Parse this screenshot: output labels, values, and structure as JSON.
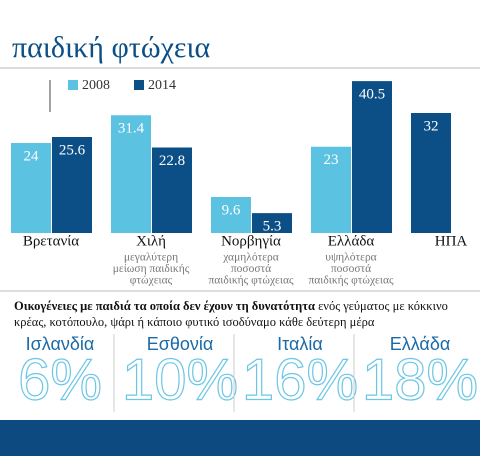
{
  "title": "παιδική φτώχεια",
  "chart_data": {
    "type": "bar",
    "categories": [
      "Βρετανία",
      "Χιλή",
      "Νορβηγία",
      "Ελλάδα",
      "ΗΠΑ"
    ],
    "series": [
      {
        "name": "2008",
        "color": "#5cc2e2",
        "values": [
          24,
          31.4,
          9.6,
          23,
          null
        ]
      },
      {
        "name": "2014",
        "color": "#0b4f86",
        "values": [
          25.6,
          22.8,
          5.3,
          40.5,
          32
        ]
      }
    ],
    "notes": [
      null,
      [
        "μεγαλύτερη",
        "μείωση παιδικής",
        "φτώχειας"
      ],
      [
        "χαμηλότερα",
        "ποσοστά",
        "παιδικής φτώχειας"
      ],
      [
        "υψηλότερα",
        "ποσοστά",
        "παιδικής φτώχειας"
      ],
      null
    ]
  },
  "caption": {
    "bold": "Οικογένειες με παιδιά τα οποία δεν έχουν τη δυνατότητα",
    "rest": "ενός γεύματος με κόκκινο κρέας, κοτόπουλο, ψάρι ή κάποιο φυτικό ισοδύναμο κάθε δεύτερη μέρα"
  },
  "stats": [
    {
      "country": "Ισλανδία",
      "text": "6%"
    },
    {
      "country": "Εσθονία",
      "text": "10%"
    },
    {
      "country": "Ιταλία",
      "text": "16%"
    },
    {
      "country": "Ελλάδα",
      "text": "18%"
    }
  ]
}
